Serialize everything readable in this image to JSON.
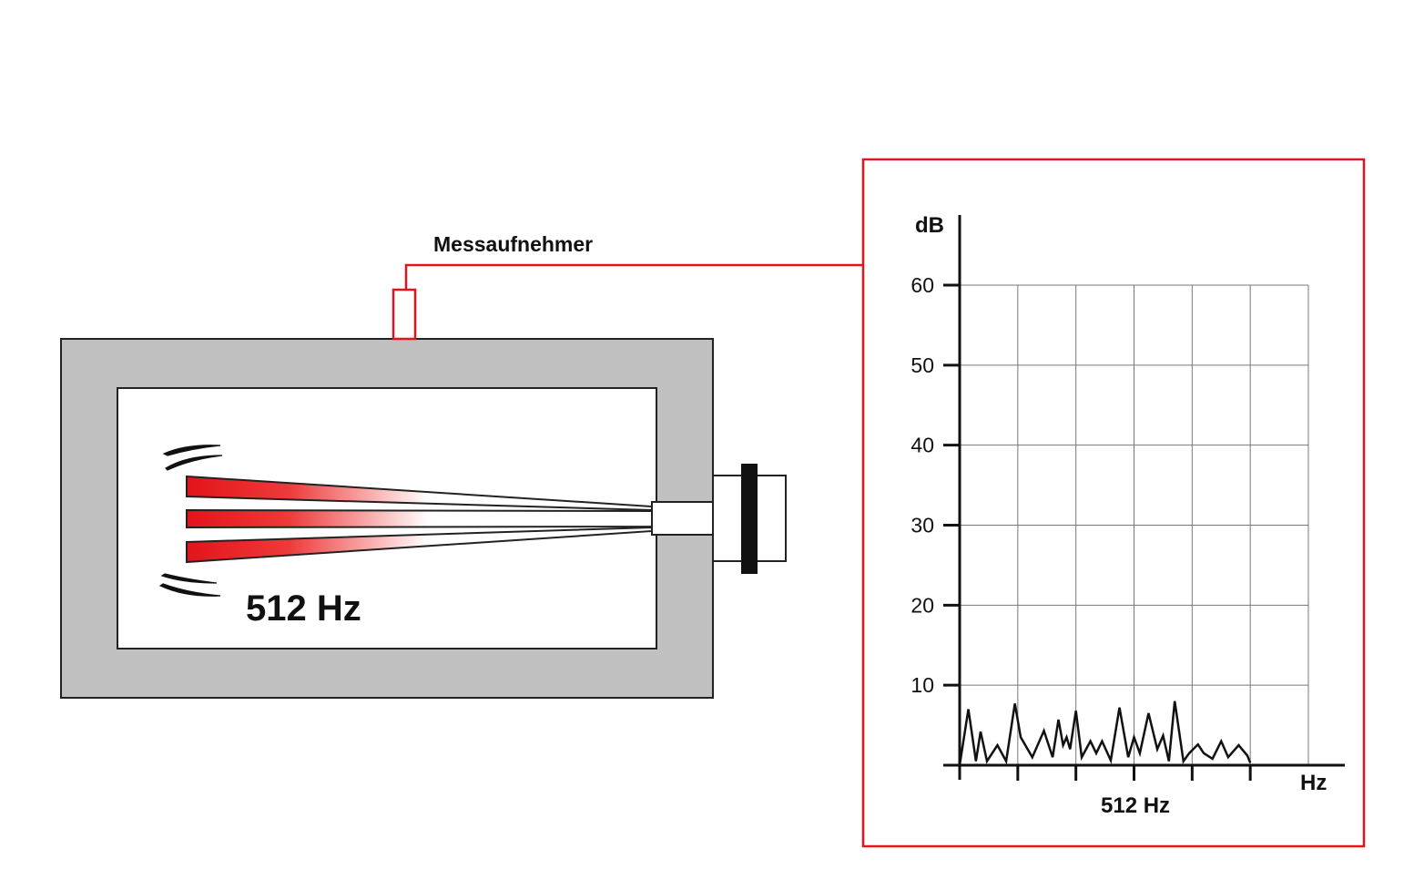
{
  "sensor_label": "Messaufnehmer",
  "box_frequency_label": "512 Hz",
  "colors": {
    "accent": "#e3141b",
    "housing": "#c0c0c0",
    "ink": "#111111"
  },
  "chart_data": {
    "type": "line",
    "ylabel": "dB",
    "xlabel": "Hz",
    "x_marker_label": "512 Hz",
    "ylim": [
      0,
      60
    ],
    "yticks": [
      10,
      20,
      30,
      40,
      50,
      60
    ],
    "x_divisions": 6,
    "grid": true,
    "series": [
      {
        "x": [
          0,
          0.15,
          0.28,
          0.36,
          0.47,
          0.65,
          0.8,
          0.95,
          1.05,
          1.25,
          1.45,
          1.6,
          1.7,
          1.78,
          1.84,
          1.9,
          2.0,
          2.1,
          2.25,
          2.35,
          2.45,
          2.6,
          2.75,
          2.9,
          3.0,
          3.1,
          3.25,
          3.4,
          3.5,
          3.6,
          3.7,
          3.85,
          3.95,
          4.1,
          4.2,
          4.35,
          4.5,
          4.62,
          4.8,
          4.95,
          5.0
        ],
        "y": [
          0,
          7,
          0.5,
          4.2,
          0.5,
          2.5,
          0.5,
          7.7,
          3.5,
          1,
          4.3,
          1,
          5.7,
          2.5,
          3.5,
          2,
          6.8,
          1,
          3,
          1.5,
          3,
          0.6,
          7.2,
          1,
          3.5,
          1.5,
          6.5,
          2,
          3.7,
          0.5,
          8,
          0.5,
          1.5,
          2.6,
          1.5,
          0.8,
          3,
          1,
          2.5,
          1.2,
          0.3
        ]
      }
    ]
  }
}
